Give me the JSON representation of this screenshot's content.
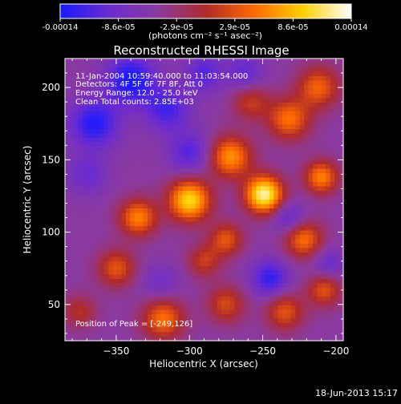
{
  "colorbar": {
    "tick_labels": [
      "-0.00014",
      "-8.6e-05",
      "-2.9e-05",
      "2.9e-05",
      "8.6e-05",
      "0.00014"
    ],
    "units": "(photons cm⁻² s⁻¹ asec⁻²)",
    "min": -0.00014,
    "max": 0.00014,
    "colormap": [
      "#1a1aff",
      "#6a2bd0",
      "#8a3aa0",
      "#b02a2a",
      "#ff6a00",
      "#ffd000",
      "#ffffff"
    ]
  },
  "chart_data": {
    "type": "heatmap",
    "title": "Reconstructed RHESSI Image",
    "xlabel": "Heliocentric X (arcsec)",
    "ylabel": "Heliocentric Y (arcsec)",
    "xlim": [
      -385,
      -195
    ],
    "ylim": [
      25,
      220
    ],
    "x_ticks": [
      -350,
      -300,
      -250,
      -200
    ],
    "y_ticks": [
      50,
      100,
      150,
      200
    ],
    "x_tick_labels": [
      "−350",
      "−300",
      "−250",
      "−200"
    ],
    "y_tick_labels": [
      "50",
      "100",
      "150",
      "200"
    ],
    "annotations": [
      "11-Jan-2004 10:59:40.000 to 11:03:54.000",
      "Detectors: 4F 5F 6F 7F 8F, Att 0",
      "Energy Range: 12.0 - 25.0 keV",
      "Clean     Total counts: 2.85E+03"
    ],
    "peak_label": "Position of Peak = [-249,126]",
    "peak": [
      -249,
      126
    ],
    "blobs": [
      {
        "x": -249,
        "y": 126,
        "a": 1.0,
        "s": 9
      },
      {
        "x": -300,
        "y": 122,
        "a": 0.85,
        "s": 10
      },
      {
        "x": -272,
        "y": 152,
        "a": 0.65,
        "s": 10
      },
      {
        "x": -335,
        "y": 110,
        "a": 0.6,
        "s": 9
      },
      {
        "x": -210,
        "y": 138,
        "a": 0.6,
        "s": 8
      },
      {
        "x": -222,
        "y": 95,
        "a": 0.55,
        "s": 9
      },
      {
        "x": -232,
        "y": 178,
        "a": 0.55,
        "s": 10
      },
      {
        "x": -212,
        "y": 200,
        "a": 0.5,
        "s": 10
      },
      {
        "x": -275,
        "y": 95,
        "a": 0.45,
        "s": 8
      },
      {
        "x": -350,
        "y": 75,
        "a": 0.45,
        "s": 9
      },
      {
        "x": -318,
        "y": 40,
        "a": 0.55,
        "s": 10
      },
      {
        "x": -275,
        "y": 50,
        "a": 0.4,
        "s": 9
      },
      {
        "x": -235,
        "y": 45,
        "a": 0.45,
        "s": 9
      },
      {
        "x": -208,
        "y": 60,
        "a": 0.45,
        "s": 8
      },
      {
        "x": -375,
        "y": 45,
        "a": 0.3,
        "s": 8
      },
      {
        "x": -258,
        "y": 190,
        "a": 0.35,
        "s": 9
      },
      {
        "x": -290,
        "y": 80,
        "a": 0.35,
        "s": 8
      },
      {
        "x": -340,
        "y": 205,
        "a": -0.55,
        "s": 12
      },
      {
        "x": -365,
        "y": 175,
        "a": -0.5,
        "s": 12
      },
      {
        "x": -315,
        "y": 185,
        "a": -0.4,
        "s": 11
      },
      {
        "x": -300,
        "y": 155,
        "a": -0.35,
        "s": 10
      },
      {
        "x": -245,
        "y": 68,
        "a": -0.45,
        "s": 9
      },
      {
        "x": -232,
        "y": 110,
        "a": -0.3,
        "s": 8
      },
      {
        "x": -262,
        "y": 210,
        "a": -0.3,
        "s": 9
      },
      {
        "x": -370,
        "y": 140,
        "a": -0.25,
        "s": 10
      },
      {
        "x": -205,
        "y": 78,
        "a": -0.25,
        "s": 8
      },
      {
        "x": -290,
        "y": 210,
        "a": -0.35,
        "s": 9
      },
      {
        "x": -320,
        "y": 65,
        "a": -0.2,
        "s": 9
      }
    ]
  },
  "footer": {
    "date": "18-Jun-2013 15:17"
  }
}
